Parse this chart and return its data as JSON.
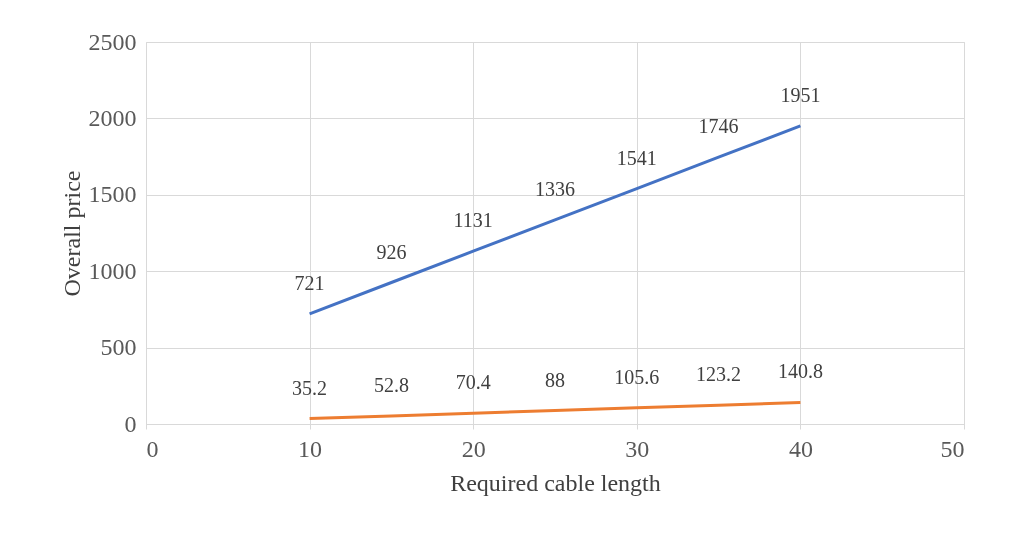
{
  "chart_data": {
    "type": "line",
    "xlabel": "Required cable length",
    "ylabel": "Overall price",
    "x": [
      10,
      15,
      20,
      25,
      30,
      35,
      40
    ],
    "series": [
      {
        "color": "#4472c4",
        "values": [
          721,
          926,
          1131,
          1336,
          1541,
          1746,
          1951
        ]
      },
      {
        "color": "#ed7d31",
        "values": [
          35.2,
          52.8,
          70.4,
          88,
          105.6,
          123.2,
          140.8
        ]
      }
    ],
    "xlim": [
      0,
      50
    ],
    "xticks": [
      0,
      10,
      20,
      30,
      40,
      50
    ],
    "ylim": [
      0,
      2500
    ],
    "yticks": [
      0,
      500,
      1000,
      1500,
      2000,
      2500
    ],
    "grid": true,
    "data_labels": true,
    "marker": "none",
    "line_style": "solid",
    "legend": false
  }
}
